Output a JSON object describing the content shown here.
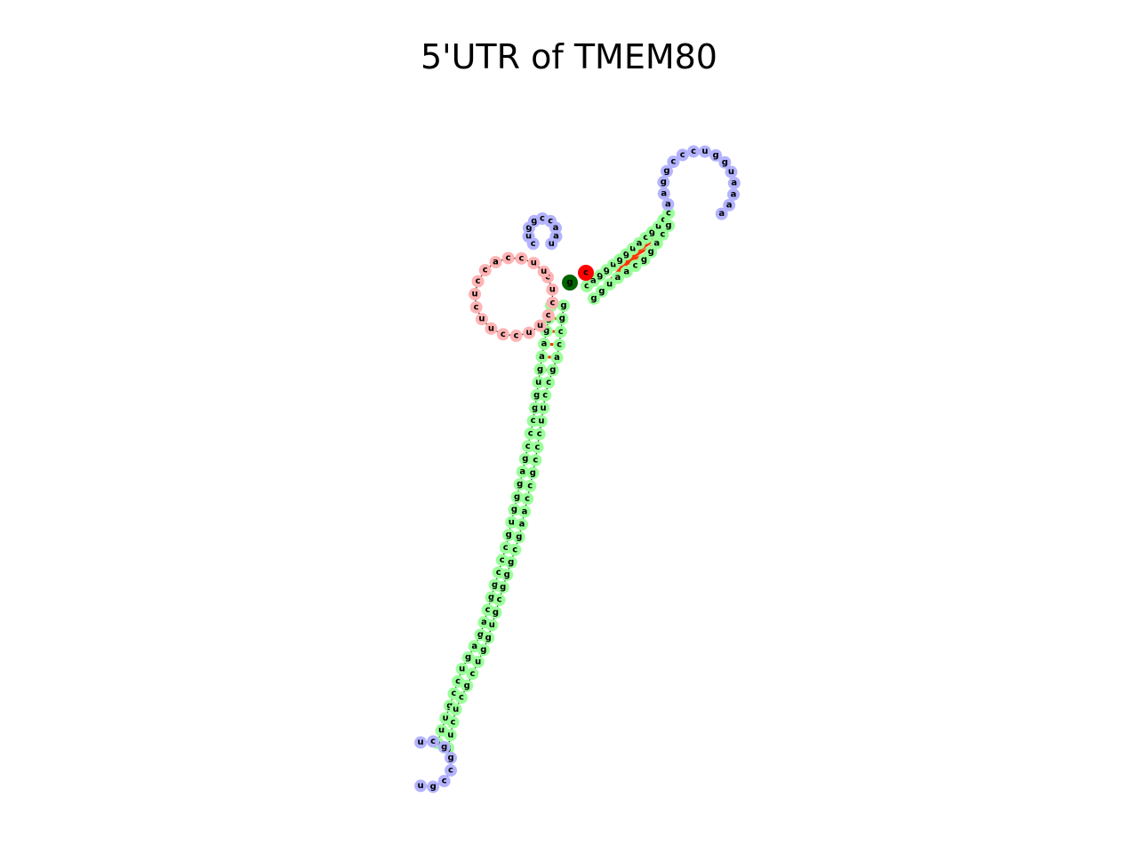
{
  "title": "5'UTR of TMEM80",
  "colors": {
    "hairpin_loop": "#b3b3ff",
    "multiloop": "#ffb3b3",
    "interior_loop": "#ffff99",
    "stem": "#99ff99",
    "bond": "#ff3300",
    "backbone": "#000000",
    "five_prime_marker": "#006400",
    "three_prime_marker": "#ff0000"
  },
  "strands": {
    "top_left_hairpin": "cuggccaau",
    "top_right_arm": "caggugguacgucc",
    "top_right_loop": "aaggcccugguaaaa",
    "return_arm": "gcaggcaaugg",
    "multiloop": "cuccuuccuucuccaccuu",
    "main_stem_left": "cggaaguggcccgagggugcccggcagaguccguua",
    "main_stem_right": "gucucgcuggugcgggcgaaccgcccuuccgaccgg",
    "terminal_loop": "ucggccgu",
    "five_prime_end": "g",
    "three_prime_end": "c"
  }
}
